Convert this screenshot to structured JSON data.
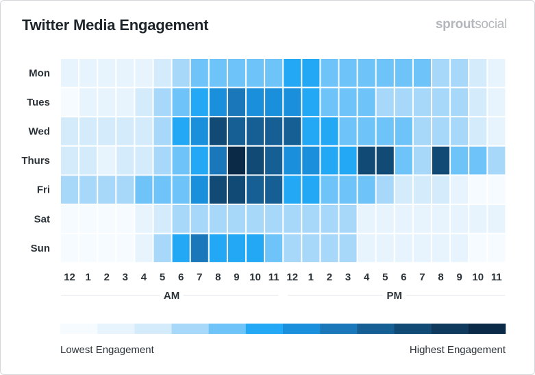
{
  "title": "Twitter Media Engagement",
  "brand": {
    "part1": "sprout",
    "part2": "social"
  },
  "chart_data": {
    "type": "heatmap",
    "title": "Twitter Media Engagement",
    "rows": [
      "Mon",
      "Tues",
      "Wed",
      "Thurs",
      "Fri",
      "Sat",
      "Sun"
    ],
    "columns": [
      "12",
      "1",
      "2",
      "3",
      "4",
      "5",
      "6",
      "7",
      "8",
      "9",
      "10",
      "11",
      "12",
      "1",
      "2",
      "3",
      "4",
      "5",
      "6",
      "7",
      "8",
      "9",
      "10",
      "11"
    ],
    "column_groups": [
      {
        "label": "AM",
        "span": 12
      },
      {
        "label": "PM",
        "span": 12
      }
    ],
    "scale_min": 0,
    "scale_max": 11,
    "values": [
      [
        1,
        1,
        1,
        1,
        1,
        2,
        3,
        4,
        4,
        4,
        4,
        4,
        5,
        5,
        4,
        4,
        4,
        4,
        4,
        4,
        3,
        3,
        2,
        1
      ],
      [
        0,
        1,
        1,
        1,
        2,
        3,
        4,
        5,
        6,
        7,
        6,
        6,
        6,
        5,
        4,
        4,
        4,
        3,
        3,
        3,
        3,
        3,
        2,
        1
      ],
      [
        2,
        2,
        2,
        2,
        2,
        3,
        5,
        6,
        9,
        8,
        8,
        8,
        8,
        5,
        5,
        4,
        4,
        4,
        4,
        3,
        3,
        3,
        2,
        1
      ],
      [
        2,
        2,
        1,
        2,
        2,
        3,
        4,
        5,
        7,
        11,
        9,
        8,
        6,
        6,
        5,
        5,
        9,
        9,
        4,
        3,
        9,
        4,
        4,
        3
      ],
      [
        3,
        3,
        3,
        3,
        4,
        4,
        4,
        6,
        9,
        9,
        8,
        8,
        5,
        5,
        4,
        4,
        4,
        3,
        2,
        2,
        2,
        1,
        0,
        0
      ],
      [
        0,
        0,
        0,
        0,
        1,
        2,
        3,
        3,
        3,
        3,
        3,
        3,
        3,
        3,
        3,
        3,
        1,
        1,
        1,
        1,
        1,
        1,
        1,
        1
      ],
      [
        0,
        0,
        0,
        0,
        1,
        3,
        5,
        7,
        5,
        5,
        5,
        4,
        3,
        3,
        3,
        3,
        1,
        1,
        1,
        1,
        1,
        1,
        0,
        0
      ]
    ],
    "palette": [
      "#f5fbfe",
      "#e7f4fd",
      "#d4ebfc",
      "#a8d8f9",
      "#6ec3f8",
      "#23a8f5",
      "#1a90dc",
      "#1a77ba",
      "#155f94",
      "#114a75",
      "#0f3a5e",
      "#0a2a47"
    ],
    "legend": {
      "low_label": "Lowest Engagement",
      "high_label": "Highest Engagement"
    }
  }
}
